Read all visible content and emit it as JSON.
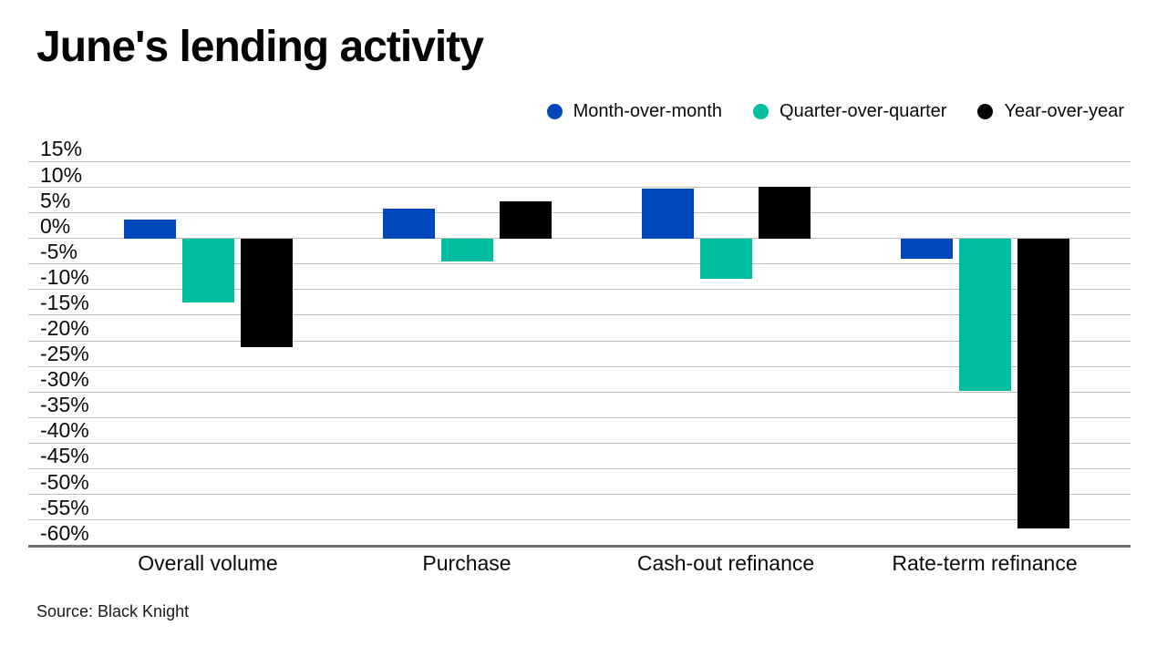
{
  "title": "June's lending activity",
  "source": "Source: Black Knight",
  "legend": [
    {
      "label": "Month-over-month",
      "color": "#0047BB"
    },
    {
      "label": "Quarter-over-quarter",
      "color": "#00BFA0"
    },
    {
      "label": "Year-over-year",
      "color": "#000000"
    }
  ],
  "chart_data": {
    "type": "bar",
    "title": "June's lending activity",
    "categories": [
      "Overall volume",
      "Purchase",
      "Cash-out refinance",
      "Rate-term refinance"
    ],
    "series": [
      {
        "name": "Month-over-month",
        "color": "#0047BB",
        "values": [
          3.7,
          5.8,
          9.8,
          -4.0
        ]
      },
      {
        "name": "Quarter-over-quarter",
        "color": "#00BFA0",
        "values": [
          -12.6,
          -4.5,
          -7.8,
          -29.7
        ]
      },
      {
        "name": "Year-over-year",
        "color": "#000000",
        "values": [
          -21.2,
          7.2,
          10.1,
          -56.6
        ]
      }
    ],
    "y_axis": {
      "min": -60,
      "max": 15,
      "step": 5,
      "suffix": "%"
    },
    "grid": true,
    "legend_position": "top-right",
    "source": "Source: Black Knight"
  }
}
